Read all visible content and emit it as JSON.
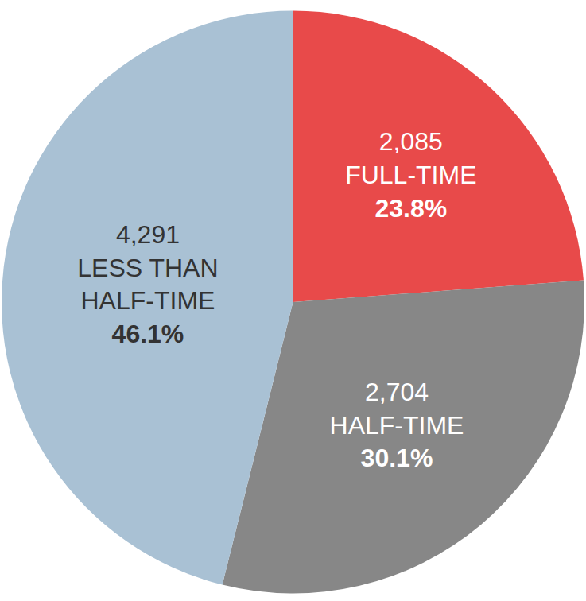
{
  "chart_data": {
    "type": "pie",
    "categories": [
      "FULL-TIME",
      "HALF-TIME",
      "LESS THAN HALF-TIME"
    ],
    "values": [
      23.8,
      30.1,
      46.1
    ],
    "value_labels": [
      "23.8%",
      "30.1%",
      "46.1%"
    ],
    "counts": [
      2085,
      2704,
      4291
    ],
    "colors": [
      "#e84a4a",
      "#878787",
      "#a9c1d4"
    ],
    "data_labels": true
  }
}
